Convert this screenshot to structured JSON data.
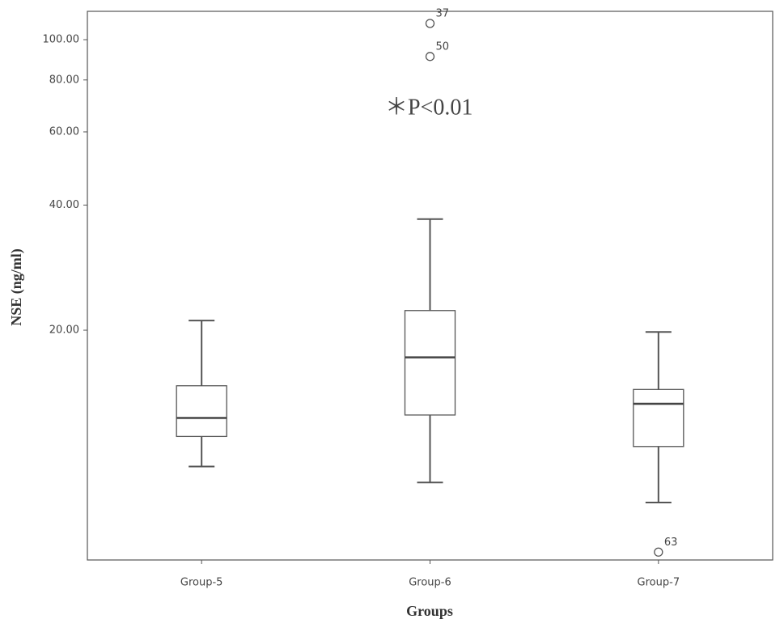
{
  "chart_data": {
    "type": "box",
    "y_label": "NSE (ng/ml)",
    "x_label": "Groups",
    "annotation": "＊P<0.01",
    "log_scale": true,
    "ylim": [
      5.6,
      117
    ],
    "yticks": [
      {
        "value": 20,
        "label": "20.00"
      },
      {
        "value": 40,
        "label": "40.00"
      },
      {
        "value": 60,
        "label": "60.00"
      },
      {
        "value": 80,
        "label": "80.00"
      },
      {
        "value": 100,
        "label": "100.00"
      }
    ],
    "categories": [
      "Group-5",
      "Group-6",
      "Group-7"
    ],
    "color": "#ffffff",
    "boxes": [
      {
        "whisker_low": 9.4,
        "q1": 11.1,
        "median": 12.3,
        "q3": 14.7,
        "whisker_high": 21.1,
        "outliers": []
      },
      {
        "whisker_low": 8.6,
        "q1": 12.5,
        "median": 17.2,
        "q3": 22.3,
        "whisker_high": 37.0,
        "outliers": [
          {
            "value": 109.4,
            "label": "37"
          },
          {
            "value": 91.1,
            "label": "50"
          }
        ]
      },
      {
        "whisker_low": 7.7,
        "q1": 10.5,
        "median": 13.3,
        "q3": 14.4,
        "whisker_high": 19.8,
        "outliers": [
          {
            "value": 5.85,
            "label": "63"
          }
        ]
      }
    ]
  }
}
